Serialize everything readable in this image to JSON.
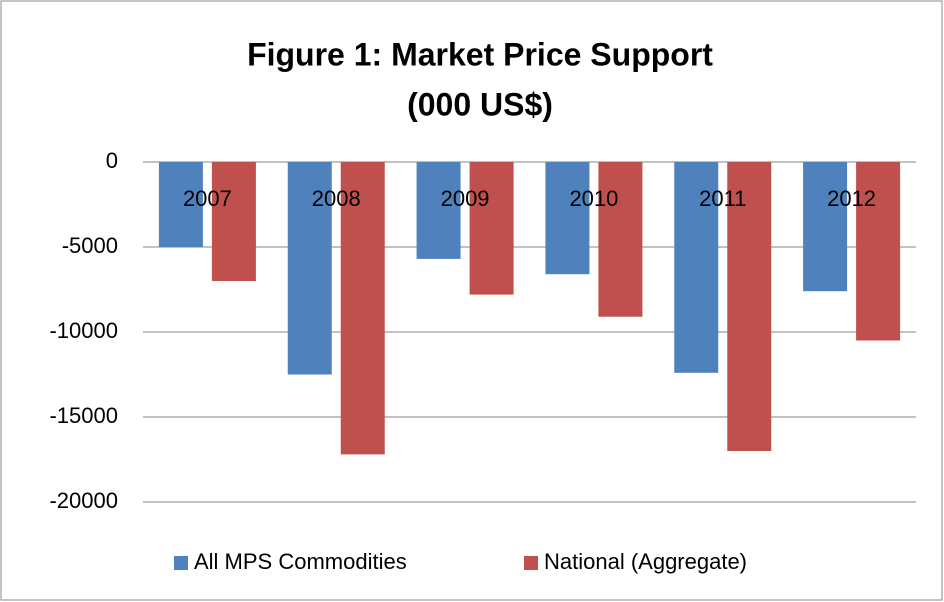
{
  "chart_data": {
    "type": "bar",
    "title": [
      "Figure 1: Market Price Support",
      "(000 US$)"
    ],
    "categories": [
      "2007",
      "2008",
      "2009",
      "2010",
      "2011",
      "2012"
    ],
    "series": [
      {
        "name": "All MPS Commodities",
        "color": "#4f81bd",
        "values": [
          -5000,
          -12500,
          -5700,
          -6600,
          -12400,
          -7600
        ]
      },
      {
        "name": "National (Aggregate)",
        "color": "#c0504d",
        "values": [
          -7000,
          -17200,
          -7800,
          -9100,
          -17000,
          -10500
        ]
      }
    ],
    "ylim": [
      -20000,
      0
    ],
    "yticks": [
      0,
      -5000,
      -10000,
      -15000,
      -20000
    ],
    "grid": true,
    "legend": "bottom"
  }
}
